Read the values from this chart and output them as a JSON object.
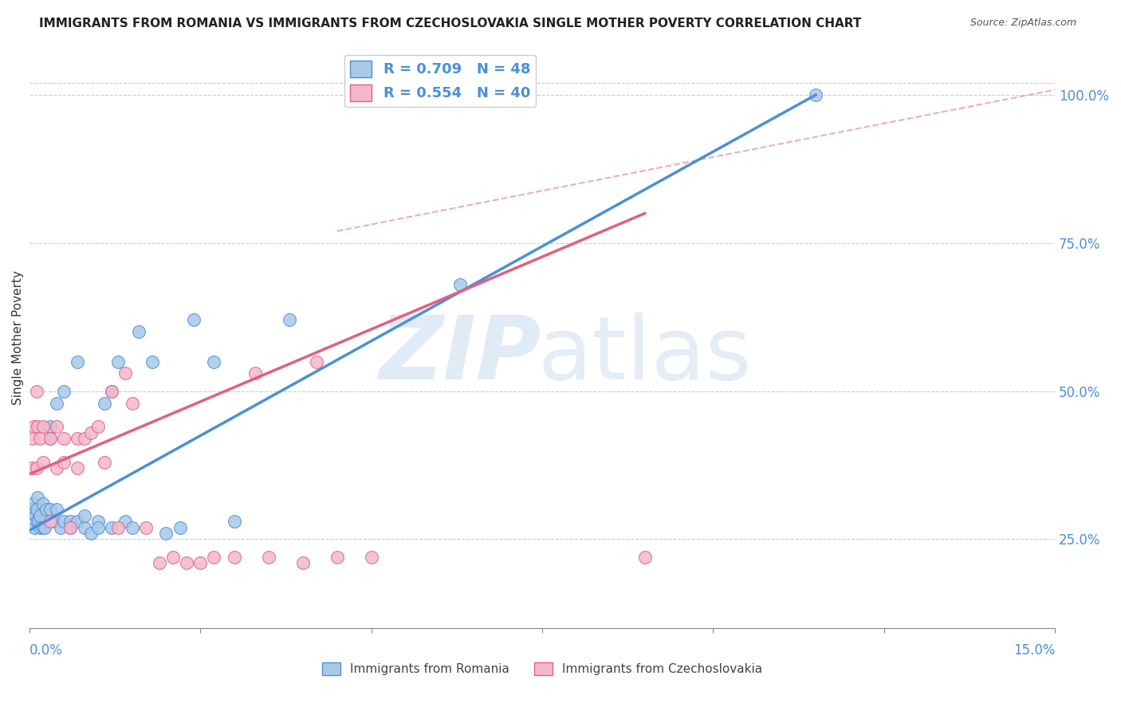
{
  "title": "IMMIGRANTS FROM ROMANIA VS IMMIGRANTS FROM CZECHOSLOVAKIA SINGLE MOTHER POVERTY CORRELATION CHART",
  "source": "Source: ZipAtlas.com",
  "ylabel": "Single Mother Poverty",
  "yaxis_labels": [
    "25.0%",
    "50.0%",
    "75.0%",
    "100.0%"
  ],
  "yaxis_values": [
    0.25,
    0.5,
    0.75,
    1.0
  ],
  "xlim": [
    0.0,
    0.15
  ],
  "ylim": [
    0.1,
    1.08
  ],
  "romania_color": "#a8c8e8",
  "czech_color": "#f4b8cc",
  "romania_line_color": "#4a90d9",
  "czech_line_color": "#e06080",
  "romania_scatter_x": [
    0.0003,
    0.0005,
    0.0007,
    0.0008,
    0.001,
    0.001,
    0.0012,
    0.0013,
    0.0015,
    0.0015,
    0.002,
    0.002,
    0.0022,
    0.0025,
    0.003,
    0.003,
    0.003,
    0.0035,
    0.004,
    0.004,
    0.0045,
    0.005,
    0.005,
    0.006,
    0.006,
    0.007,
    0.007,
    0.008,
    0.008,
    0.009,
    0.01,
    0.01,
    0.011,
    0.012,
    0.012,
    0.013,
    0.014,
    0.015,
    0.016,
    0.018,
    0.02,
    0.022,
    0.024,
    0.027,
    0.03,
    0.038,
    0.063,
    0.115
  ],
  "romania_scatter_y": [
    0.3,
    0.31,
    0.27,
    0.29,
    0.3,
    0.28,
    0.32,
    0.28,
    0.29,
    0.27,
    0.27,
    0.31,
    0.27,
    0.3,
    0.44,
    0.42,
    0.3,
    0.28,
    0.48,
    0.3,
    0.27,
    0.5,
    0.28,
    0.27,
    0.28,
    0.55,
    0.28,
    0.27,
    0.29,
    0.26,
    0.28,
    0.27,
    0.48,
    0.5,
    0.27,
    0.55,
    0.28,
    0.27,
    0.6,
    0.55,
    0.26,
    0.27,
    0.62,
    0.55,
    0.28,
    0.62,
    0.68,
    1.0
  ],
  "czech_scatter_x": [
    0.0003,
    0.0005,
    0.0007,
    0.001,
    0.001,
    0.0012,
    0.0015,
    0.002,
    0.002,
    0.003,
    0.003,
    0.004,
    0.004,
    0.005,
    0.005,
    0.006,
    0.007,
    0.007,
    0.008,
    0.009,
    0.01,
    0.011,
    0.012,
    0.013,
    0.014,
    0.015,
    0.017,
    0.019,
    0.021,
    0.023,
    0.025,
    0.027,
    0.03,
    0.033,
    0.035,
    0.04,
    0.042,
    0.045,
    0.05,
    0.09
  ],
  "czech_scatter_y": [
    0.37,
    0.42,
    0.44,
    0.5,
    0.37,
    0.44,
    0.42,
    0.38,
    0.44,
    0.28,
    0.42,
    0.44,
    0.37,
    0.38,
    0.42,
    0.27,
    0.42,
    0.37,
    0.42,
    0.43,
    0.44,
    0.38,
    0.5,
    0.27,
    0.53,
    0.48,
    0.27,
    0.21,
    0.22,
    0.21,
    0.21,
    0.22,
    0.22,
    0.53,
    0.22,
    0.21,
    0.55,
    0.22,
    0.22,
    0.22
  ],
  "romania_trend_x": [
    0.0,
    0.115
  ],
  "romania_trend_y": [
    0.265,
    1.0
  ],
  "czech_trend_x": [
    0.0,
    0.09
  ],
  "czech_trend_y": [
    0.36,
    0.8
  ],
  "ref_line_x": [
    0.045,
    0.155
  ],
  "ref_line_y": [
    0.77,
    1.02
  ],
  "ref_line_color": "#e8a0b0"
}
